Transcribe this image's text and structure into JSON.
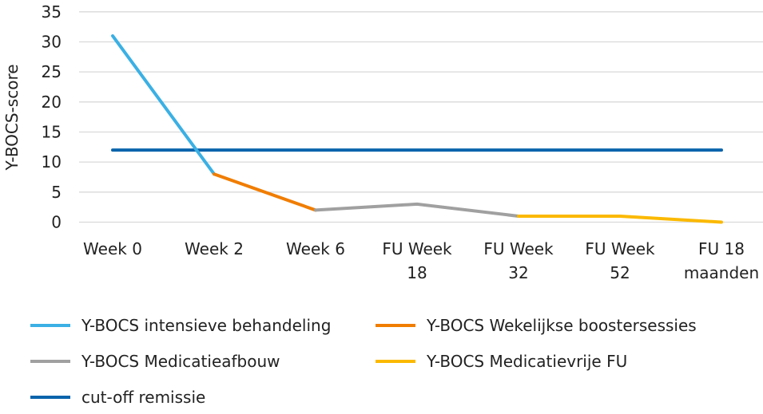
{
  "chart_data": {
    "type": "line",
    "title": "",
    "xlabel": "",
    "ylabel": "Y-BOCS-score",
    "ylim": [
      0,
      35
    ],
    "yticks": [
      0,
      5,
      10,
      15,
      20,
      25,
      30,
      35
    ],
    "grid": true,
    "legend_position": "bottom",
    "categories": [
      [
        "Week 0"
      ],
      [
        "Week 2"
      ],
      [
        "Week 6"
      ],
      [
        "FU Week",
        "18"
      ],
      [
        "FU Week",
        "32"
      ],
      [
        "FU Week",
        "52"
      ],
      [
        "FU 18",
        "maanden"
      ]
    ],
    "series": [
      {
        "name": "Y-BOCS intensieve behandeling",
        "color": "#3BB0E4",
        "values": [
          31,
          8,
          null,
          null,
          null,
          null,
          null
        ]
      },
      {
        "name": "Y-BOCS Wekelijkse boostersessies",
        "color": "#F07D00",
        "values": [
          null,
          8,
          2,
          null,
          null,
          null,
          null
        ]
      },
      {
        "name": "Y-BOCS Medicatieafbouw",
        "color": "#A0A0A0",
        "values": [
          null,
          null,
          2,
          3,
          1,
          null,
          null
        ]
      },
      {
        "name": "Y-BOCS Medicatievrije FU",
        "color": "#FBB900",
        "values": [
          null,
          null,
          null,
          null,
          1,
          1,
          0
        ]
      },
      {
        "name": "cut-off remissie",
        "color": "#0A64AC",
        "values": [
          12,
          12,
          12,
          12,
          12,
          12,
          12
        ]
      }
    ]
  }
}
